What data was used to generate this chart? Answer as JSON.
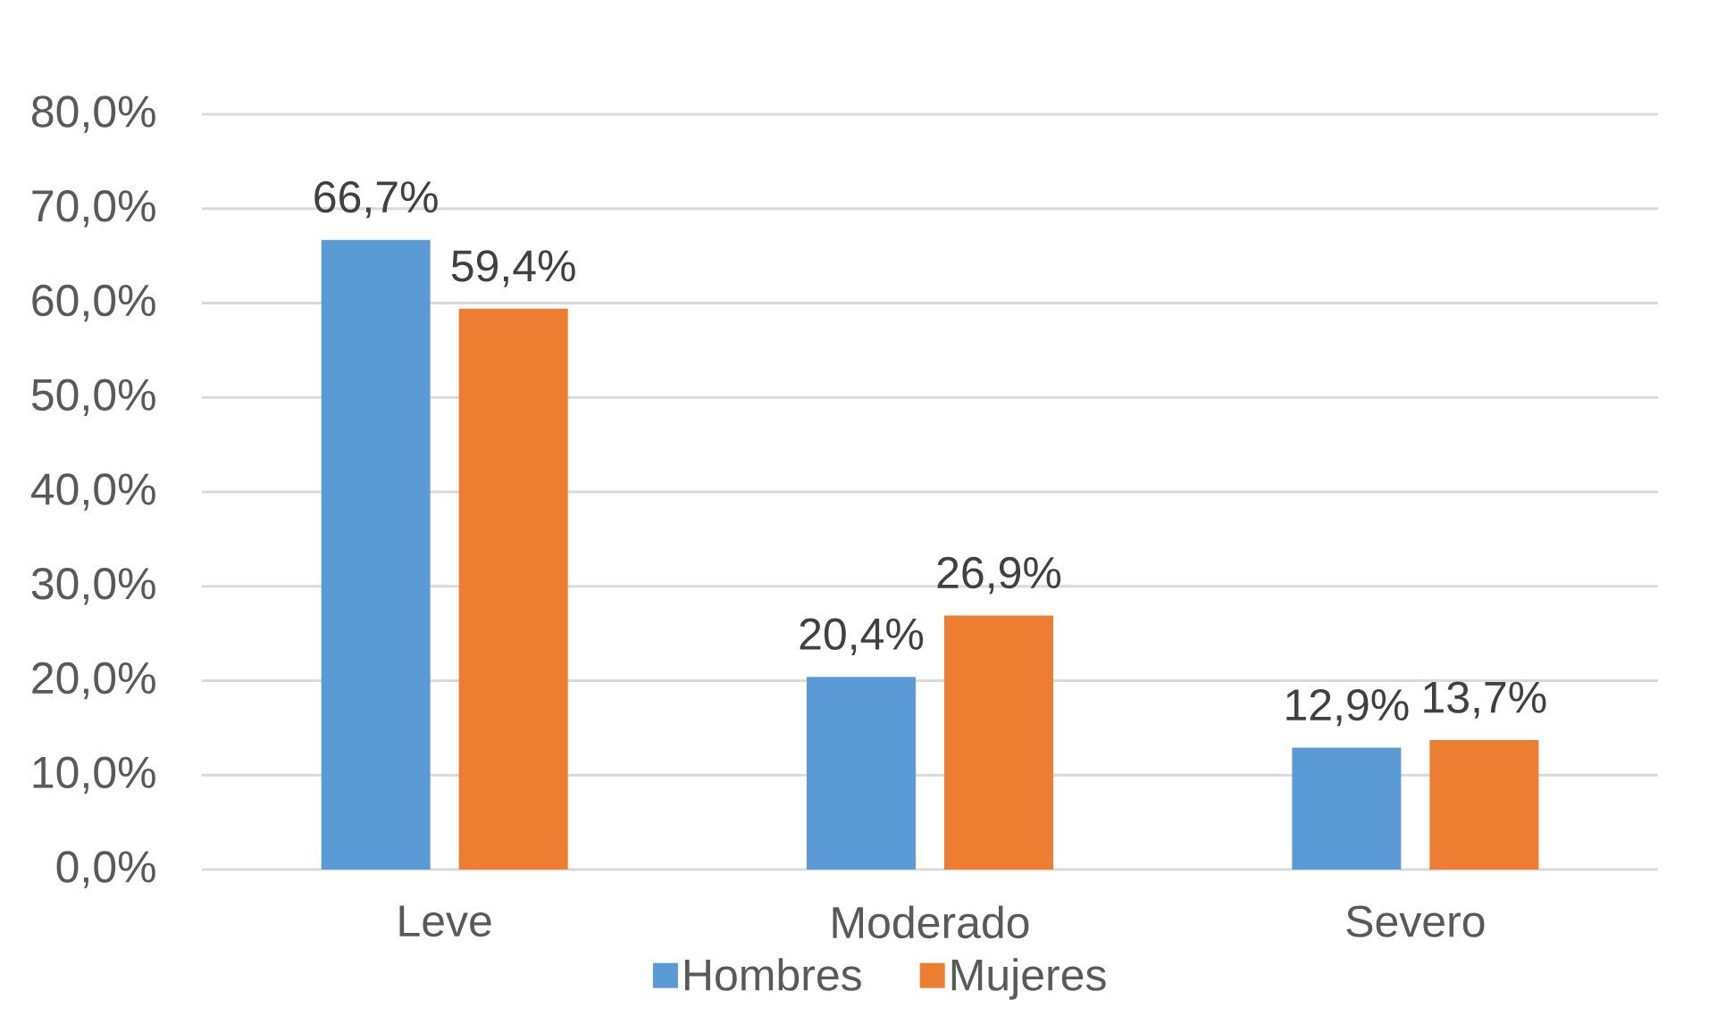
{
  "chart_data": {
    "type": "bar",
    "categories": [
      "Leve",
      "Moderado",
      "Severo"
    ],
    "series": [
      {
        "name": "Hombres",
        "color": "#5b9bd5",
        "values": [
          66.7,
          20.4,
          12.9
        ],
        "value_labels": [
          "66,7%",
          "20,4%",
          "12,9%"
        ]
      },
      {
        "name": "Mujeres",
        "color": "#ed7d31",
        "values": [
          59.4,
          26.9,
          13.7
        ],
        "value_labels": [
          "59,4%",
          "26,9%",
          "13,7%"
        ]
      }
    ],
    "ylim": [
      0,
      80
    ],
    "yticks": [
      {
        "value": 0,
        "label": "0,0%"
      },
      {
        "value": 10,
        "label": "10,0%"
      },
      {
        "value": 20,
        "label": "20,0%"
      },
      {
        "value": 30,
        "label": "30,0%"
      },
      {
        "value": 40,
        "label": "40,0%"
      },
      {
        "value": 50,
        "label": "50,0%"
      },
      {
        "value": 60,
        "label": "60,0%"
      },
      {
        "value": 70,
        "label": "70,0%"
      },
      {
        "value": 80,
        "label": "80,0%"
      }
    ],
    "grid": "y",
    "legend": "bottom"
  }
}
